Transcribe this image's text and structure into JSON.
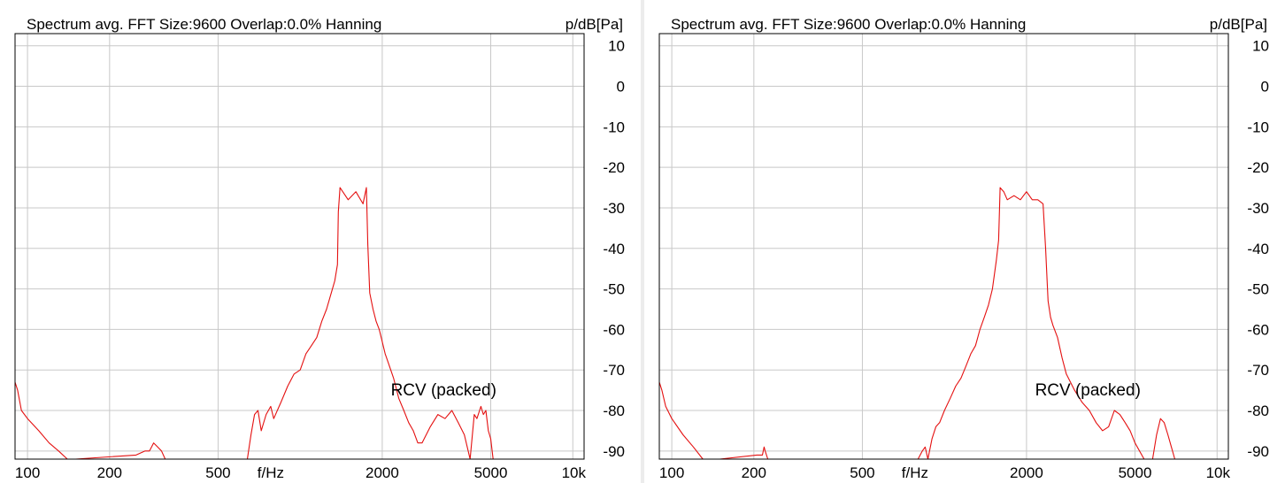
{
  "chart_data": [
    {
      "type": "line",
      "title": "Spectrum avg.  FFT Size:9600  Overlap:0.0%  Hanning",
      "ylabel": "p/dB[Pa]",
      "xlabel": "f/Hz",
      "x_scale": "log",
      "xlim": [
        90,
        11000
      ],
      "ylim": [
        -92,
        13
      ],
      "x_ticks": [
        100,
        200,
        500,
        2000,
        5000,
        10000
      ],
      "x_tick_labels": [
        "100",
        "200",
        "500",
        "2000",
        "5000",
        "10k"
      ],
      "y_ticks": [
        10,
        0,
        -10,
        -20,
        -30,
        -40,
        -50,
        -60,
        -70,
        -80,
        -90
      ],
      "y_tick_labels": [
        "10",
        "0",
        "-10",
        "-20",
        "-30",
        "-40",
        "-50",
        "-60",
        "-70",
        "-80",
        "-90"
      ],
      "grid": true,
      "annotation": {
        "text": "RCV (packed)",
        "x": 2150,
        "y": -78
      },
      "series": [
        {
          "color": "#e41010",
          "x": [
            90,
            92,
            95,
            100,
            110,
            120,
            130,
            140,
            150,
            250,
            270,
            280,
            290,
            300,
            310,
            320,
            640,
            660,
            680,
            700,
            720,
            750,
            780,
            800,
            850,
            900,
            950,
            1000,
            1050,
            1100,
            1150,
            1200,
            1250,
            1300,
            1340,
            1370,
            1380,
            1400,
            1500,
            1600,
            1700,
            1750,
            1770,
            1800,
            1850,
            1900,
            1950,
            2000,
            2050,
            2100,
            2200,
            2300,
            2400,
            2500,
            2600,
            2700,
            2800,
            3000,
            3200,
            3400,
            3600,
            3800,
            4000,
            4200,
            4350,
            4450,
            4550,
            4600,
            4700,
            4800,
            4900,
            5000,
            5100,
            5200
          ],
          "y": [
            -73,
            -75,
            -80,
            -82,
            -85,
            -88,
            -90,
            -92,
            -92,
            -91,
            -90,
            -90,
            -88,
            -89,
            -90,
            -92,
            -92,
            -86,
            -81,
            -80,
            -85,
            -81,
            -79,
            -82,
            -78,
            -74,
            -71,
            -70,
            -66,
            -64,
            -62,
            -58,
            -55,
            -51,
            -48,
            -44,
            -31,
            -25,
            -28,
            -26,
            -29,
            -25,
            -39,
            -51,
            -55,
            -58,
            -60,
            -63,
            -66,
            -68,
            -72,
            -77,
            -80,
            -83,
            -85,
            -88,
            -88,
            -84,
            -81,
            -82,
            -80,
            -83,
            -86,
            -92,
            -81,
            -82,
            -80,
            -79,
            -81,
            -80,
            -85,
            -87,
            -92,
            -92
          ]
        }
      ]
    },
    {
      "type": "line",
      "title": "Spectrum avg.  FFT Size:9600  Overlap:0.0%  Hanning",
      "ylabel": "p/dB[Pa]",
      "xlabel": "f/Hz",
      "x_scale": "log",
      "xlim": [
        90,
        11000
      ],
      "ylim": [
        -92,
        13
      ],
      "x_ticks": [
        100,
        200,
        500,
        2000,
        5000,
        10000
      ],
      "x_tick_labels": [
        "100",
        "200",
        "500",
        "2000",
        "5000",
        "10k"
      ],
      "y_ticks": [
        10,
        0,
        -10,
        -20,
        -30,
        -40,
        -50,
        -60,
        -70,
        -80,
        -90
      ],
      "y_tick_labels": [
        "10",
        "0",
        "-10",
        "-20",
        "-30",
        "-40",
        "-50",
        "-60",
        "-70",
        "-80",
        "-90"
      ],
      "grid": true,
      "annotation": {
        "text": "RCV (packed)",
        "x": 2150,
        "y": -78
      },
      "series": [
        {
          "color": "#e41010",
          "x": [
            90,
            92,
            95,
            100,
            110,
            120,
            130,
            140,
            150,
            205,
            215,
            218,
            220,
            225,
            230,
            800,
            830,
            850,
            870,
            900,
            930,
            960,
            1000,
            1050,
            1100,
            1150,
            1200,
            1250,
            1300,
            1350,
            1400,
            1450,
            1500,
            1550,
            1580,
            1600,
            1650,
            1700,
            1800,
            1900,
            2000,
            2100,
            2200,
            2300,
            2350,
            2380,
            2400,
            2450,
            2500,
            2600,
            2700,
            2800,
            3000,
            3200,
            3400,
            3600,
            3800,
            4000,
            4200,
            4400,
            4600,
            4800,
            5000,
            5400,
            5800,
            6000,
            6200,
            6400,
            6600,
            6800,
            7000
          ],
          "y": [
            -73,
            -75,
            -79,
            -82,
            -86,
            -89,
            -92,
            -92,
            -92,
            -91,
            -91,
            -89,
            -90,
            -92,
            -92,
            -92,
            -90,
            -89,
            -92,
            -87,
            -84,
            -83,
            -80,
            -77,
            -74,
            -72,
            -69,
            -66,
            -64,
            -60,
            -57,
            -54,
            -50,
            -43,
            -38,
            -25,
            -26,
            -28,
            -27,
            -28,
            -26,
            -28,
            -28,
            -29,
            -40,
            -48,
            -53,
            -57,
            -59,
            -62,
            -67,
            -71,
            -75,
            -78,
            -80,
            -83,
            -85,
            -84,
            -80,
            -81,
            -83,
            -85,
            -88,
            -92,
            -92,
            -86,
            -82,
            -83,
            -86,
            -89,
            -92
          ]
        }
      ]
    }
  ]
}
